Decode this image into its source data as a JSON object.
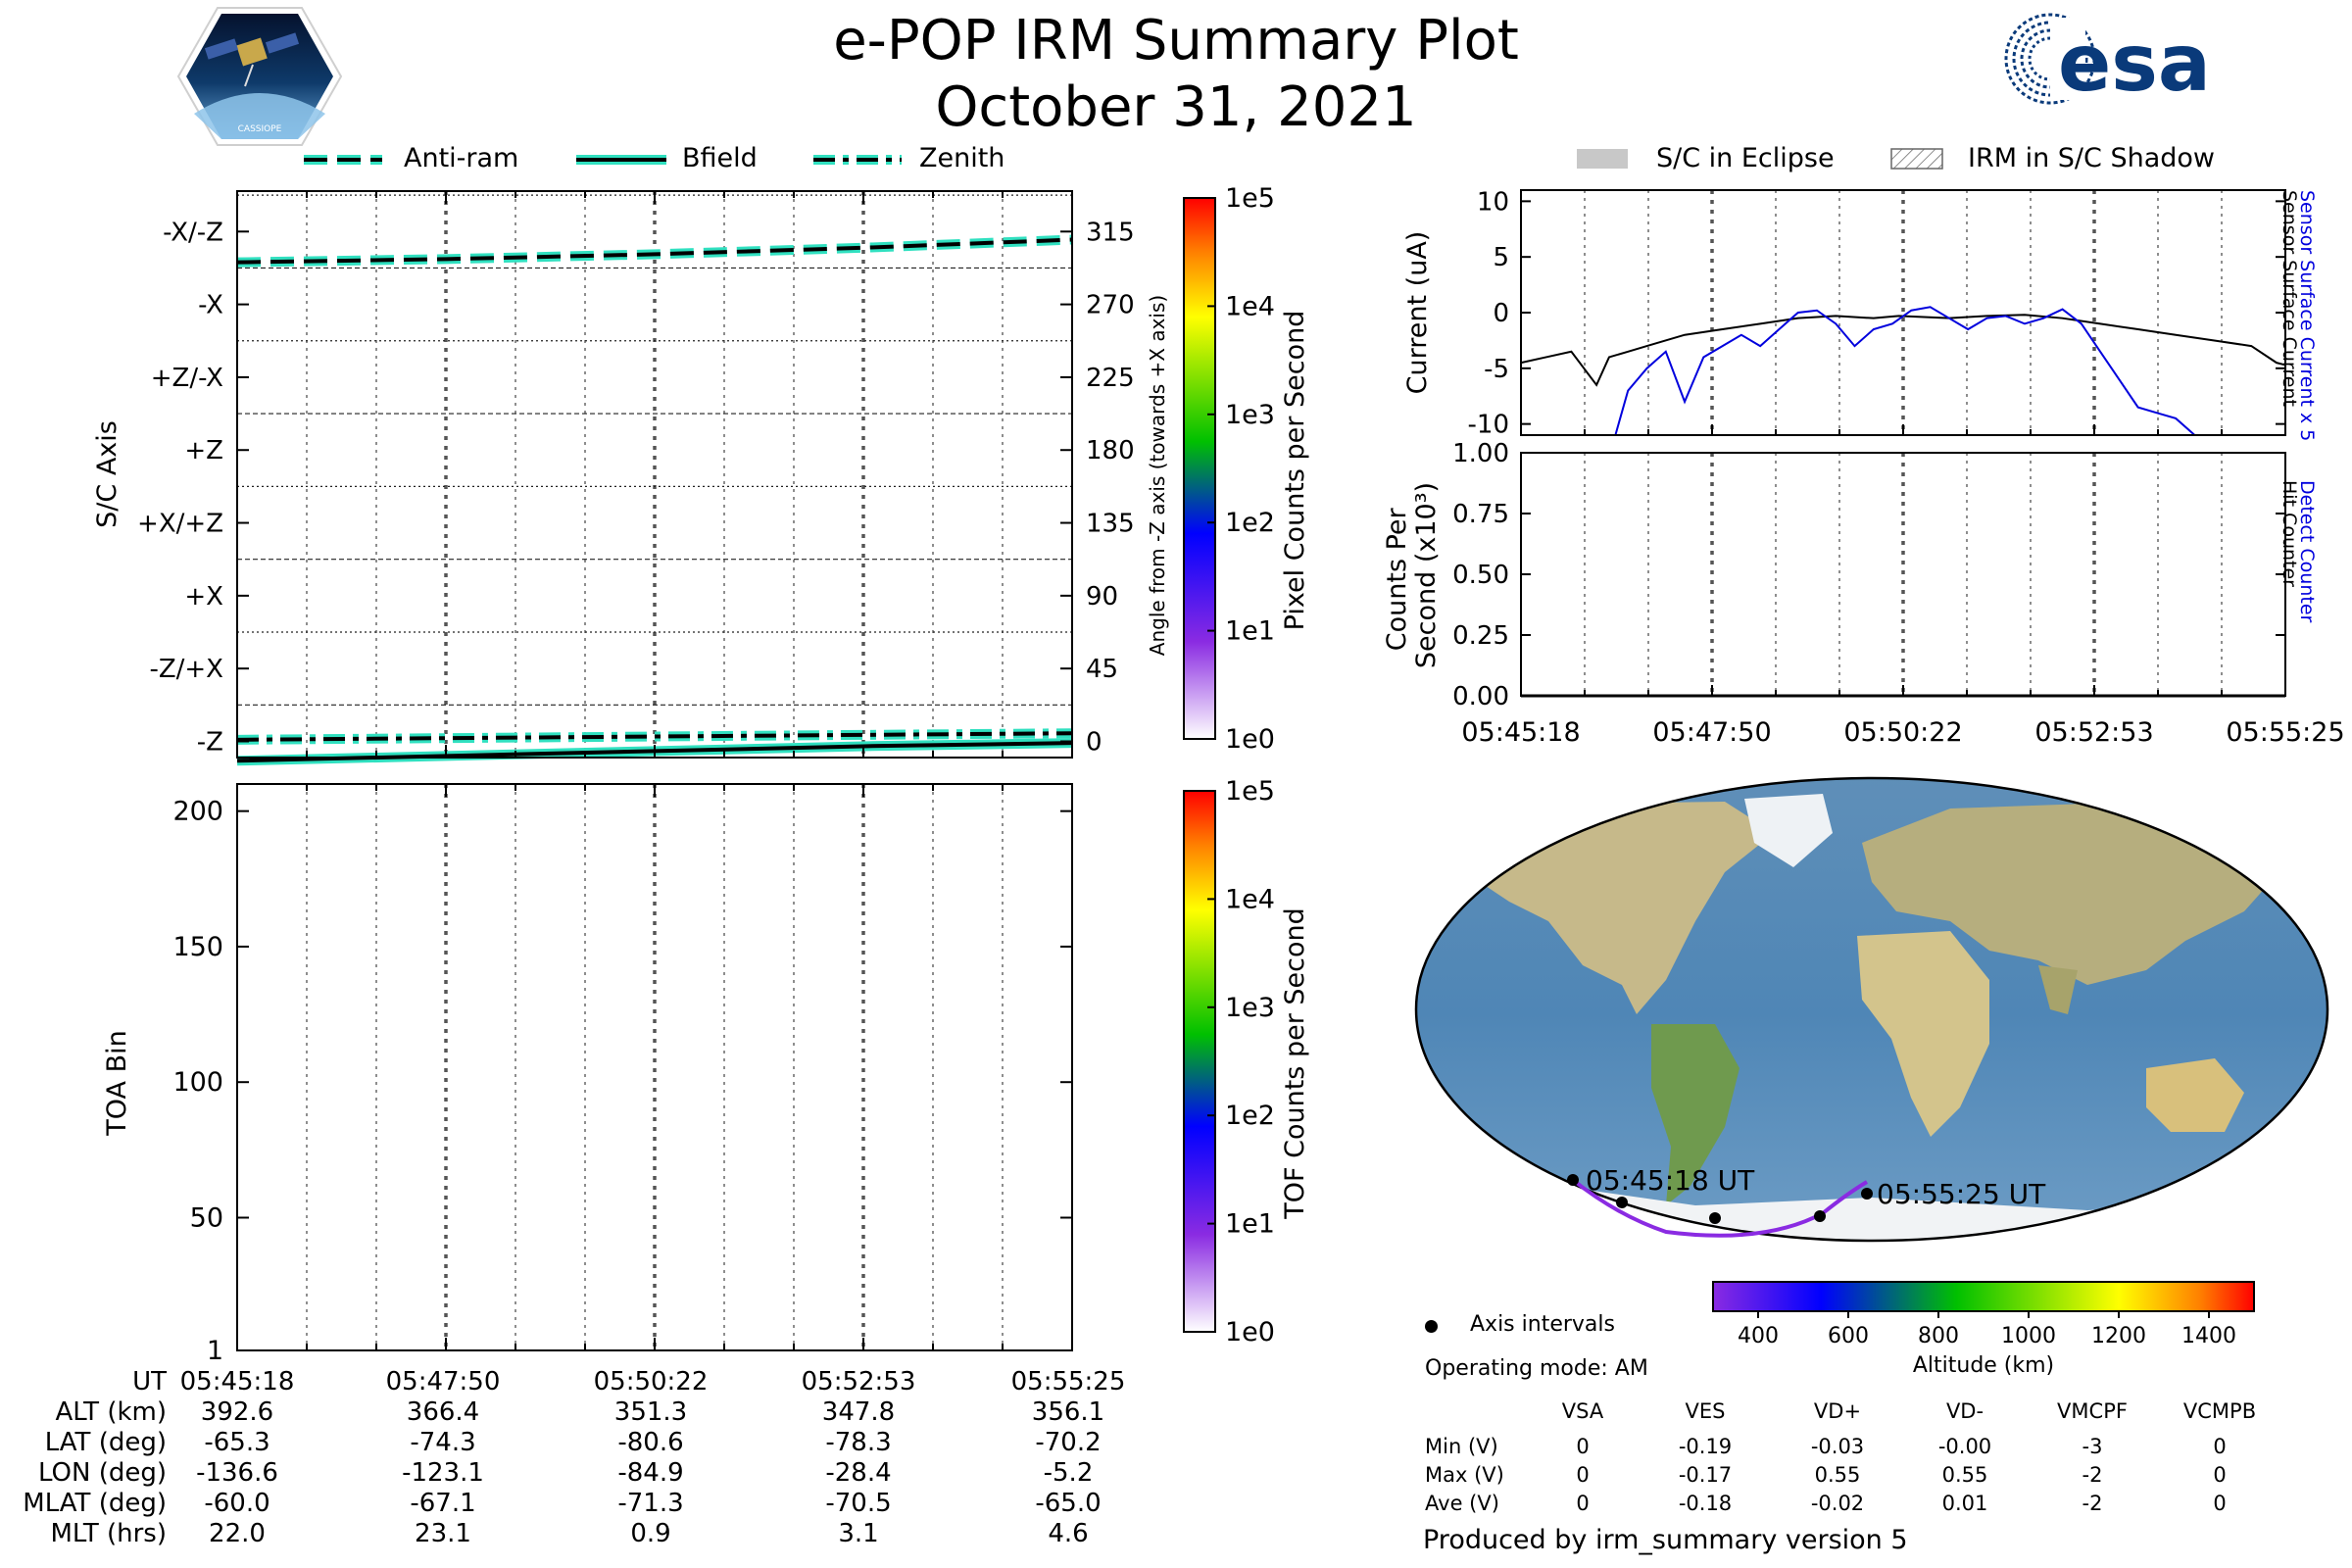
{
  "header": {
    "title": "e-POP IRM Summary Plot",
    "date": "October 31, 2021",
    "logo_left": "CASSIOPE",
    "logo_right": "esa"
  },
  "top_legend": [
    "Anti-ram",
    "Bfield",
    "Zenith"
  ],
  "right_legend": [
    "S/C in Eclipse",
    "IRM in S/C Shadow"
  ],
  "colors": {
    "direction_line": "#000000",
    "direction_halo": "#30e0c0",
    "sensor_black": "#000000",
    "sensor_blue": "#0000dd",
    "track": "#8a2be2"
  },
  "time_ticks": [
    "05:45:18",
    "05:47:50",
    "05:50:22",
    "05:52:53",
    "05:55:25"
  ],
  "chart_data": [
    {
      "id": "sc-axis",
      "type": "line",
      "ylabel": "S/C Axis",
      "y2label": "Angle from -Z axis (towards +X axis)",
      "axis_categories": [
        "-Z",
        "-Z/+X",
        "+X",
        "+X/+Z",
        "+Z",
        "+Z/-X",
        "-X",
        "-X/-Z"
      ],
      "angle_ticks": [
        0,
        45,
        90,
        135,
        180,
        225,
        270,
        315
      ],
      "ylim": [
        -10,
        340
      ],
      "xlim": [
        0,
        607
      ],
      "series": [
        {
          "name": "Anti-ram",
          "style": "dashed",
          "x": [
            0,
            152,
            304,
            455,
            607
          ],
          "values": [
            296,
            298,
            301,
            305,
            310
          ]
        },
        {
          "name": "Bfield",
          "style": "solid",
          "x": [
            0,
            152,
            304,
            455,
            607
          ],
          "values": [
            -12,
            -9,
            -6,
            -3,
            -1
          ]
        },
        {
          "name": "Zenith",
          "style": "dashdot",
          "x": [
            0,
            152,
            304,
            455,
            607
          ],
          "values": [
            1,
            2,
            3,
            4,
            5
          ]
        }
      ],
      "colorbar": {
        "label": "Pixel Counts per Second",
        "ticks": [
          "1e0",
          "1e1",
          "1e2",
          "1e3",
          "1e4",
          "1e5"
        ]
      }
    },
    {
      "id": "toa",
      "type": "heatmap",
      "ylabel": "TOA Bin",
      "yticks": [
        1,
        50,
        100,
        150,
        200
      ],
      "ylim": [
        1,
        210
      ],
      "xlim": [
        0,
        607
      ],
      "values": [],
      "colorbar": {
        "label": "TOF Counts per Second",
        "ticks": [
          "1e0",
          "1e1",
          "1e2",
          "1e3",
          "1e4",
          "1e5"
        ]
      }
    },
    {
      "id": "current",
      "type": "line",
      "ylabel": "Current (uA)",
      "right_labels": [
        "Sensor Surface Current x 5",
        "Sensor Surface Current"
      ],
      "yticks": [
        10,
        5,
        0,
        -5,
        -10
      ],
      "ylim": [
        -11,
        11
      ],
      "xlim": [
        0,
        607
      ],
      "series": [
        {
          "name": "Sensor Surface Current",
          "color": "black",
          "x": [
            0,
            20,
            40,
            50,
            60,
            70,
            85,
            100,
            130,
            160,
            190,
            220,
            250,
            280,
            300,
            320,
            340,
            370,
            400,
            430,
            460,
            490,
            520,
            550,
            580,
            600,
            607
          ],
          "values": [
            -4.5,
            -4.0,
            -3.5,
            -5.0,
            -6.5,
            -4.0,
            -3.5,
            -3.0,
            -2.0,
            -1.5,
            -1.0,
            -0.5,
            -0.3,
            -0.5,
            -0.3,
            -0.4,
            -0.5,
            -0.3,
            -0.2,
            -0.5,
            -1.0,
            -1.5,
            -2.0,
            -2.5,
            -3.0,
            -4.5,
            -4.7
          ]
        },
        {
          "name": "Sensor Surface Current x 5",
          "color": "blue",
          "x": [
            75,
            85,
            100,
            115,
            130,
            145,
            160,
            175,
            190,
            205,
            220,
            235,
            250,
            265,
            280,
            295,
            310,
            325,
            340,
            355,
            370,
            385,
            400,
            415,
            430,
            445,
            460,
            475,
            490,
            505,
            520,
            535
          ],
          "values": [
            -11,
            -7.0,
            -5.0,
            -3.5,
            -8.0,
            -4.0,
            -3.0,
            -2.0,
            -3.0,
            -1.5,
            0.0,
            0.2,
            -1.0,
            -3.0,
            -1.5,
            -1.0,
            0.2,
            0.5,
            -0.5,
            -1.5,
            -0.5,
            -0.3,
            -1.0,
            -0.5,
            0.3,
            -1.0,
            -3.5,
            -6.0,
            -8.5,
            -9.0,
            -9.5,
            -11
          ]
        }
      ]
    },
    {
      "id": "counts",
      "type": "line",
      "ylabel": "Counts Per Second (x10³)",
      "right_labels": [
        "Detect Counter",
        "Hit Counter"
      ],
      "yticks": [
        1.0,
        0.75,
        0.5,
        0.25,
        0.0
      ],
      "ylim": [
        0,
        1
      ],
      "xlim": [
        0,
        607
      ],
      "series": [
        {
          "name": "Detect Counter",
          "color": "blue",
          "x": [
            0,
            607
          ],
          "values": [
            0,
            0
          ]
        },
        {
          "name": "Hit Counter",
          "color": "black",
          "x": [
            0,
            607
          ],
          "values": [
            0,
            0
          ]
        }
      ]
    },
    {
      "id": "altitude-colorbar",
      "type": "heatmap",
      "xlabel": "Altitude (km)",
      "ticks": [
        400,
        600,
        800,
        1000,
        1200,
        1400
      ],
      "xlim": [
        300,
        1500
      ]
    }
  ],
  "map": {
    "start_label": "05:45:18 UT",
    "end_label": "05:55:25 UT",
    "axis_intervals_label": "Axis intervals",
    "operating_mode": "Operating mode: AM"
  },
  "ephemeris": {
    "row_labels": [
      "UT",
      "ALT (km)",
      "LAT (deg)",
      "LON (deg)",
      "MLAT (deg)",
      "MLT (hrs)"
    ],
    "columns": [
      [
        "05:45:18",
        "392.6",
        "-65.3",
        "-136.6",
        "-60.0",
        "22.0"
      ],
      [
        "05:47:50",
        "366.4",
        "-74.3",
        "-123.1",
        "-67.1",
        "23.1"
      ],
      [
        "05:50:22",
        "351.3",
        "-80.6",
        "-84.9",
        "-71.3",
        "0.9"
      ],
      [
        "05:52:53",
        "347.8",
        "-78.3",
        "-28.4",
        "-70.5",
        "3.1"
      ],
      [
        "05:55:25",
        "356.1",
        "-70.2",
        "-5.2",
        "-65.0",
        "4.6"
      ]
    ]
  },
  "voltage_table": {
    "headers": [
      "VSA",
      "VES",
      "VD+",
      "VD-",
      "VMCPF",
      "VCMPB"
    ],
    "rows": [
      {
        "label": "Min (V)",
        "values": [
          "0",
          "-0.19",
          "-0.03",
          "-0.00",
          "-3",
          "0"
        ]
      },
      {
        "label": "Max (V)",
        "values": [
          "0",
          "-0.17",
          "0.55",
          "0.55",
          "-2",
          "0"
        ]
      },
      {
        "label": "Ave (V)",
        "values": [
          "0",
          "-0.18",
          "-0.02",
          "0.01",
          "-2",
          "0"
        ]
      }
    ]
  },
  "footer": "Produced by irm_summary version 5"
}
